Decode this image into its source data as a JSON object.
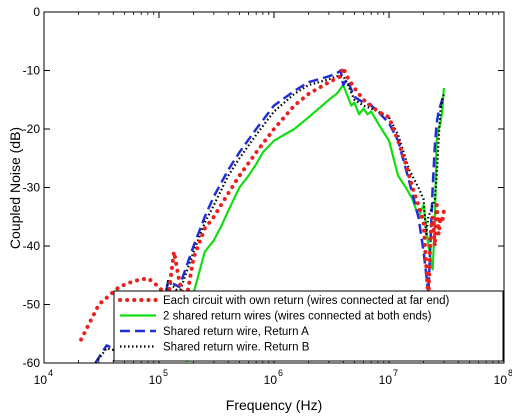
{
  "chart_data": {
    "type": "line",
    "title": "",
    "xlabel": "Frequency (Hz)",
    "ylabel": "Coupled Noise (dB)",
    "xscale": "log",
    "xlim": [
      10000,
      100000000
    ],
    "ylim": [
      -60,
      0
    ],
    "x_ticks": [
      {
        "value": 10000,
        "base": "10",
        "exp": "4"
      },
      {
        "value": 100000,
        "base": "10",
        "exp": "5"
      },
      {
        "value": 1000000,
        "base": "10",
        "exp": "6"
      },
      {
        "value": 10000000,
        "base": "10",
        "exp": "7"
      },
      {
        "value": 100000000,
        "base": "10",
        "exp": "8"
      }
    ],
    "y_ticks": [
      0,
      -10,
      -20,
      -30,
      -40,
      -50,
      -60
    ],
    "grid": false,
    "legend_position": "bottom-right",
    "series": [
      {
        "name": "Each circuit with own return (wires connected at far end)",
        "color": "#e8201e",
        "style": "dotted-large",
        "x": [
          21000,
          30000,
          45000,
          60000,
          80000,
          100000,
          120000,
          135000,
          150000,
          170000,
          200000,
          250000,
          300000,
          400000,
          500000,
          700000,
          1000000,
          1500000,
          2000000,
          3000000,
          3800000,
          4000000,
          4300000,
          5000000,
          6000000,
          7000000,
          8000000,
          10000000,
          12000000,
          14000000,
          16000000,
          18000000,
          20000000,
          21000000,
          22000000,
          23000000,
          24000000,
          25000000,
          26000000,
          27000000,
          28000000,
          29000000,
          30000000
        ],
        "y": [
          -56,
          -50,
          -47,
          -46,
          -45.5,
          -47,
          -49,
          -41,
          -46,
          -50,
          -42,
          -37,
          -35,
          -31,
          -28,
          -24,
          -20,
          -16,
          -14,
          -12,
          -11,
          -9.5,
          -11,
          -13,
          -15,
          -16,
          -17,
          -18,
          -22,
          -26,
          -30,
          -33,
          -36,
          -43,
          -49,
          -38,
          -35,
          -40,
          -33,
          -38,
          -35,
          -36,
          -34
        ]
      },
      {
        "name": "2 shared return wires (wires connected at both ends)",
        "color": "#11dd11",
        "style": "solid",
        "x": [
          175000,
          180000,
          200000,
          220000,
          250000,
          300000,
          350000,
          400000,
          500000,
          600000,
          700000,
          800000,
          1000000,
          1500000,
          2000000,
          3000000,
          3500000,
          4000000,
          4300000,
          4700000,
          5000000,
          5500000,
          6000000,
          6500000,
          7000000,
          8000000,
          10000000,
          12000000,
          14000000,
          16000000,
          18000000,
          20000000,
          22000000,
          24000000,
          25000000,
          26000000,
          27000000,
          28000000,
          29000000,
          30000000
        ],
        "y": [
          -60,
          -53,
          -48,
          -45,
          -41,
          -39,
          -36.5,
          -34,
          -30,
          -28,
          -26,
          -24,
          -22,
          -20,
          -18,
          -15,
          -14,
          -12.5,
          -14,
          -16,
          -15.5,
          -17.5,
          -16.5,
          -17.5,
          -17,
          -19,
          -22,
          -28,
          -30,
          -32,
          -35,
          -33,
          -40,
          -44,
          -36,
          -22,
          -20,
          -19,
          -17,
          -13
        ]
      },
      {
        "name": "Shared return wire, Return A",
        "color": "#1f2fd6",
        "style": "dashed",
        "x": [
          28000,
          35000,
          45000,
          60000,
          80000,
          100000,
          110000,
          120000,
          150000,
          200000,
          250000,
          300000,
          400000,
          500000,
          700000,
          1000000,
          1500000,
          2000000,
          3000000,
          3500000,
          3800000,
          4000000,
          4300000,
          5000000,
          6000000,
          7000000,
          8000000,
          10000000,
          12000000,
          15000000,
          18000000,
          20000000,
          22000000,
          24000000,
          25000000,
          26000000,
          27000000,
          28000000,
          29000000,
          30000000
        ],
        "y": [
          -60,
          -57,
          -58,
          -57,
          -56,
          -54,
          -50,
          -46,
          -47,
          -40,
          -35,
          -31.5,
          -27,
          -24,
          -20,
          -16,
          -13.5,
          -12,
          -11,
          -10.5,
          -10,
          -12.5,
          -11.5,
          -14.5,
          -15.5,
          -16,
          -17,
          -19,
          -22,
          -29,
          -35,
          -41,
          -48,
          -30,
          -23,
          -19,
          -17,
          -16,
          -15,
          -14
        ]
      },
      {
        "name": "Shared return wire. Return B",
        "color": "#000000",
        "style": "dotted",
        "x": [
          28000,
          35000,
          45000,
          60000,
          80000,
          100000,
          110000,
          120000,
          150000,
          200000,
          250000,
          300000,
          400000,
          500000,
          700000,
          1000000,
          1500000,
          2000000,
          3000000,
          3500000,
          4000000,
          4300000,
          5000000,
          6000000,
          7000000,
          8000000,
          10000000,
          12000000,
          15000000,
          18000000,
          20000000,
          21000000,
          22000000,
          24000000,
          25000000,
          26000000,
          27000000,
          28000000,
          29000000,
          30000000
        ],
        "y": [
          -60,
          -57.5,
          -58,
          -57.5,
          -56,
          -55,
          -51,
          -46,
          -48,
          -41,
          -36,
          -33,
          -28,
          -25,
          -21,
          -17,
          -14,
          -12.5,
          -11.5,
          -11,
          -11,
          -12,
          -15,
          -16,
          -16.5,
          -17,
          -18,
          -21,
          -27,
          -30,
          -32,
          -38,
          -35,
          -33,
          -32,
          -28,
          -22,
          -17,
          -15,
          -14
        ]
      }
    ]
  }
}
